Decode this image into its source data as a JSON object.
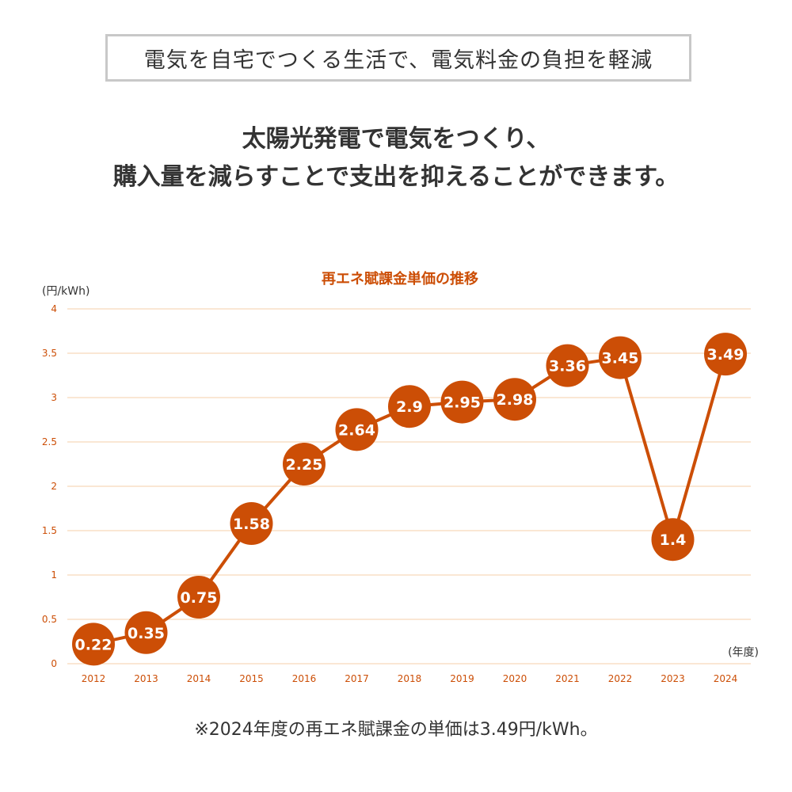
{
  "banner": {
    "text": "電気を自宅でつくる生活で、電気料金の負担を軽減"
  },
  "headline": {
    "line1": "太陽光発電で電気をつくり、",
    "line2": "購入量を減らすことで支出を抑えることができます。"
  },
  "footnote": {
    "text": "※2024年度の再エネ賦課金の単価は3.49円/kWh。"
  },
  "colors": {
    "accent": "#cc4e06",
    "grid": "#f5cfa8",
    "tick_text": "#cc4e06",
    "text": "#333333"
  },
  "chart_data": {
    "type": "line",
    "title": "再エネ賦課金単価の推移",
    "ylabel": "(円/kWh)",
    "xlabel": "(年度)",
    "categories": [
      "2012",
      "2013",
      "2014",
      "2015",
      "2016",
      "2017",
      "2018",
      "2019",
      "2020",
      "2021",
      "2022",
      "2023",
      "2024"
    ],
    "values": [
      0.22,
      0.35,
      0.75,
      1.58,
      2.25,
      2.64,
      2.9,
      2.95,
      2.98,
      3.36,
      3.45,
      1.4,
      3.49
    ],
    "data_labels": [
      "0.22",
      "0.35",
      "0.75",
      "1.58",
      "2.25",
      "2.64",
      "2.9",
      "2.95",
      "2.98",
      "3.36",
      "3.45",
      "1.4",
      "3.49"
    ],
    "ylim": [
      0,
      4
    ],
    "yticks": [
      "0",
      "0.5",
      "1",
      "1.5",
      "2",
      "2.5",
      "3",
      "3.5",
      "4"
    ],
    "grid": true,
    "marker": "circle-with-label"
  }
}
